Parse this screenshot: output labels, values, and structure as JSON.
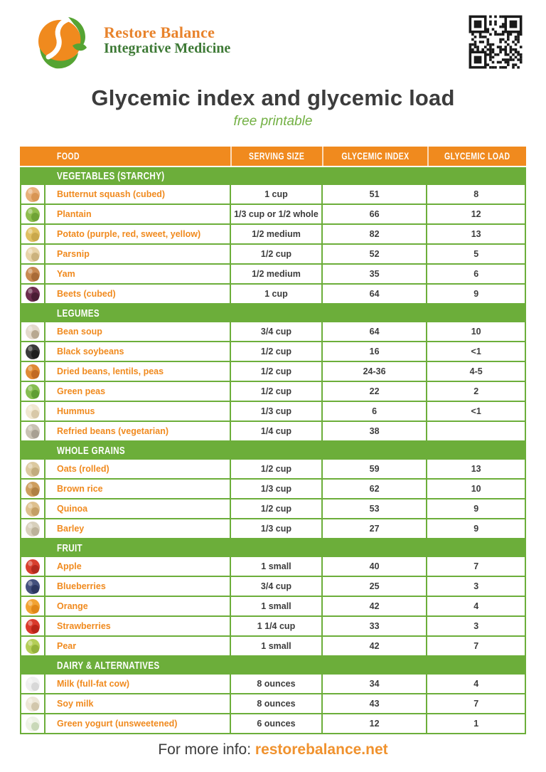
{
  "brand": {
    "name": "Restore Balance",
    "tagline": "Integrative Medicine"
  },
  "header_icons": {
    "logo": "leaf-circle-logo",
    "qr": "qr-code"
  },
  "title": "Glycemic index and glycemic load",
  "subtitle": "free printable",
  "table": {
    "columns": [
      "FOOD",
      "SERVING SIZE",
      "GLYCEMIC INDEX",
      "GLYCEMIC LOAD"
    ],
    "sections": [
      {
        "label": "VEGETABLES (STARCHY)",
        "rows": [
          {
            "icon": "butternut-squash-icon",
            "icon_colors": [
              "#E8B07A",
              "#D89554"
            ],
            "food": "Butternut squash (cubed)",
            "serving": "1 cup",
            "gi": "51",
            "gl": "8"
          },
          {
            "icon": "plantain-icon",
            "icon_colors": [
              "#8FBE4F",
              "#6FA337"
            ],
            "food": "Plantain",
            "serving": "1/3 cup or 1/2 whole",
            "gi": "66",
            "gl": "12"
          },
          {
            "icon": "potato-icon",
            "icon_colors": [
              "#E0C063",
              "#C9A84C"
            ],
            "food": "Potato (purple, red, sweet, yellow)",
            "serving": "1/2 medium",
            "gi": "82",
            "gl": "13"
          },
          {
            "icon": "parsnip-icon",
            "icon_colors": [
              "#E8D3A8",
              "#CBB27E"
            ],
            "food": "Parsnip",
            "serving": "1/2 cup",
            "gi": "52",
            "gl": "5"
          },
          {
            "icon": "yam-icon",
            "icon_colors": [
              "#C98A52",
              "#A96B38"
            ],
            "food": "Yam",
            "serving": "1/2 medium",
            "gi": "35",
            "gl": "6"
          },
          {
            "icon": "beets-icon",
            "icon_colors": [
              "#6B2D4E",
              "#4A1C35"
            ],
            "food": "Beets (cubed)",
            "serving": "1 cup",
            "gi": "64",
            "gl": "9"
          }
        ]
      },
      {
        "label": "LEGUMES",
        "rows": [
          {
            "icon": "bean-soup-icon",
            "icon_colors": [
              "#E3D9CB",
              "#B8A890"
            ],
            "food": "Bean soup",
            "serving": "3/4 cup",
            "gi": "64",
            "gl": "10"
          },
          {
            "icon": "black-soybeans-icon",
            "icon_colors": [
              "#3A3A3A",
              "#1E1E1E"
            ],
            "food": "Black soybeans",
            "serving": "1/2 cup",
            "gi": "16",
            "gl": "<1"
          },
          {
            "icon": "dried-beans-lentils-icon",
            "icon_colors": [
              "#E08A35",
              "#C26A22"
            ],
            "food": "Dried beans, lentils, peas",
            "serving": "1/2 cup",
            "gi": "24-36",
            "gl": "4-5"
          },
          {
            "icon": "green-peas-icon",
            "icon_colors": [
              "#86BE52",
              "#5F9E34"
            ],
            "food": "Green peas",
            "serving": "1/2 cup",
            "gi": "22",
            "gl": "2"
          },
          {
            "icon": "hummus-icon",
            "icon_colors": [
              "#F0E6D0",
              "#D8C8A8"
            ],
            "food": "Hummus",
            "serving": "1/3 cup",
            "gi": "6",
            "gl": "<1"
          },
          {
            "icon": "refried-beans-icon",
            "icon_colors": [
              "#C9C2B4",
              "#A8A093"
            ],
            "food": "Refried beans (vegetarian)",
            "serving": "1/4 cup",
            "gi": "38",
            "gl": ""
          }
        ]
      },
      {
        "label": "WHOLE GRAINS",
        "rows": [
          {
            "icon": "oats-icon",
            "icon_colors": [
              "#DCC9A0",
              "#C2AC7E"
            ],
            "food": "Oats (rolled)",
            "serving": "1/2 cup",
            "gi": "59",
            "gl": "13"
          },
          {
            "icon": "brown-rice-icon",
            "icon_colors": [
              "#CE9E5E",
              "#B08044"
            ],
            "food": "Brown rice",
            "serving": "1/3 cup",
            "gi": "62",
            "gl": "10"
          },
          {
            "icon": "quinoa-icon",
            "icon_colors": [
              "#DEC08E",
              "#C49F66"
            ],
            "food": "Quinoa",
            "serving": "1/2 cup",
            "gi": "53",
            "gl": "9"
          },
          {
            "icon": "barley-icon",
            "icon_colors": [
              "#D8D0BC",
              "#BCB29A"
            ],
            "food": "Barley",
            "serving": "1/3 cup",
            "gi": "27",
            "gl": "9"
          }
        ]
      },
      {
        "label": "FRUIT",
        "rows": [
          {
            "icon": "apple-icon",
            "icon_colors": [
              "#D8402E",
              "#B22A1E"
            ],
            "food": "Apple",
            "serving": "1 small",
            "gi": "40",
            "gl": "7"
          },
          {
            "icon": "blueberries-icon",
            "icon_colors": [
              "#44517E",
              "#2C3760"
            ],
            "food": "Blueberries",
            "serving": "3/4 cup",
            "gi": "25",
            "gl": "3"
          },
          {
            "icon": "orange-icon",
            "icon_colors": [
              "#F2A333",
              "#E08718"
            ],
            "food": "Orange",
            "serving": "1 small",
            "gi": "42",
            "gl": "4"
          },
          {
            "icon": "strawberries-icon",
            "icon_colors": [
              "#DA3A2C",
              "#B82418"
            ],
            "food": "Strawberries",
            "serving": "1 1/4 cup",
            "gi": "33",
            "gl": "3"
          },
          {
            "icon": "pear-icon",
            "icon_colors": [
              "#B5CE57",
              "#94B23B"
            ],
            "food": "Pear",
            "serving": "1 small",
            "gi": "42",
            "gl": "7"
          }
        ]
      },
      {
        "label": "DAIRY & ALTERNATIVES",
        "rows": [
          {
            "icon": "milk-icon",
            "icon_colors": [
              "#EFEFEF",
              "#D8D8D8"
            ],
            "food": "Milk (full-fat cow)",
            "serving": "8 ounces",
            "gi": "34",
            "gl": "4"
          },
          {
            "icon": "soy-milk-icon",
            "icon_colors": [
              "#EDE6D6",
              "#D2C7AC"
            ],
            "food": "Soy milk",
            "serving": "8 ounces",
            "gi": "43",
            "gl": "7"
          },
          {
            "icon": "green-yogurt-icon",
            "icon_colors": [
              "#EEF2E6",
              "#C9D8B8"
            ],
            "food": "Green yogurt (unsweetened)",
            "serving": "6 ounces",
            "gi": "12",
            "gl": "1"
          }
        ]
      }
    ]
  },
  "footer": {
    "text": "For more info: ",
    "link": "restorebalance.net"
  },
  "colors": {
    "accent_orange": "#F08A1E",
    "accent_green": "#6CAE3A",
    "brand_orange": "#E8832C",
    "brand_green": "#3E7A36",
    "title_dark": "#3C3C3C",
    "subtitle_green": "#72B043",
    "link_orange": "#F0922E"
  }
}
